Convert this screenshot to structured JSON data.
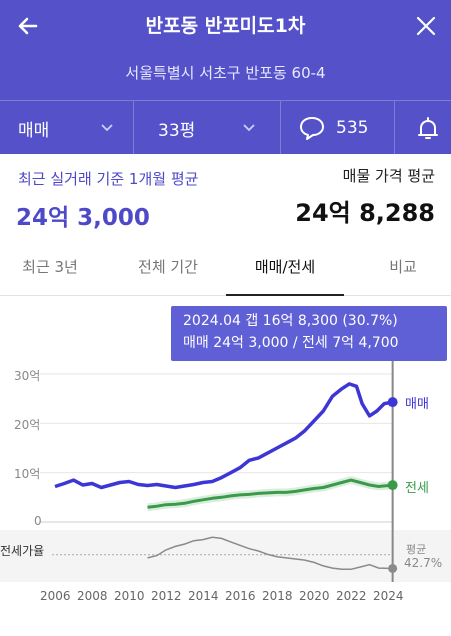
{
  "header": {
    "title": "반포동 반포미도1차",
    "address": "서울특별시 서초구 반포동 60-4",
    "trade_type": "매매",
    "size": "33평",
    "comment_count": "535"
  },
  "summary": {
    "recent_label": "최근 실거래 기준 1개월 평균",
    "recent_value": "24억 3,000",
    "listing_label": "매물 가격 평균",
    "listing_value": "24억 8,288"
  },
  "tabs": [
    {
      "label": "최근 3년"
    },
    {
      "label": "전체 기간"
    },
    {
      "label": "매매/전세"
    },
    {
      "label": "비교"
    }
  ],
  "tooltip": {
    "line1": "2024.04  갭 16억 8,300 (30.7%)",
    "line2": "매매 24억 3,000 / 전세 7억 4,700"
  },
  "colors": {
    "header_bg": "#5451c9",
    "sale": "#3d36d6",
    "jeonse": "#3a9a4a",
    "ratio": "#8a8a8a"
  },
  "chart_data": {
    "type": "line",
    "x_ticks": [
      "2006",
      "2008",
      "2010",
      "2012",
      "2014",
      "2016",
      "2018",
      "2020",
      "2022",
      "2024"
    ],
    "y_ticks": [
      "30억",
      "20억",
      "10억",
      "0"
    ],
    "ylim": [
      0,
      30
    ],
    "series": [
      {
        "name": "매매",
        "x": [
          2006.0,
          2006.5,
          2007.0,
          2007.5,
          2008.0,
          2008.5,
          2009.0,
          2009.5,
          2010.0,
          2010.5,
          2011.0,
          2011.5,
          2012.0,
          2012.5,
          2013.0,
          2013.5,
          2014.0,
          2014.5,
          2015.0,
          2015.5,
          2016.0,
          2016.5,
          2017.0,
          2017.5,
          2018.0,
          2018.5,
          2019.0,
          2019.5,
          2020.0,
          2020.5,
          2021.0,
          2021.5,
          2021.9,
          2022.3,
          2022.6,
          2023.0,
          2023.4,
          2023.8,
          2024.25
        ],
        "y": [
          7.2,
          7.8,
          8.5,
          7.5,
          7.8,
          7.0,
          7.5,
          8.0,
          8.2,
          7.6,
          7.4,
          7.6,
          7.3,
          7.0,
          7.3,
          7.6,
          8.0,
          8.2,
          9.0,
          10.0,
          11.0,
          12.5,
          13.0,
          14.0,
          15.0,
          16.0,
          17.0,
          18.5,
          20.5,
          22.5,
          25.5,
          27.0,
          28.0,
          27.5,
          24.0,
          21.5,
          22.5,
          24.0,
          24.3
        ]
      },
      {
        "name": "전세",
        "x": [
          2011.0,
          2011.5,
          2012.0,
          2012.5,
          2013.0,
          2013.5,
          2014.0,
          2014.5,
          2015.0,
          2015.5,
          2016.0,
          2016.5,
          2017.0,
          2017.5,
          2018.0,
          2018.5,
          2019.0,
          2019.5,
          2020.0,
          2020.5,
          2021.0,
          2021.5,
          2022.0,
          2022.5,
          2023.0,
          2023.5,
          2024.25
        ],
        "y": [
          3.0,
          3.2,
          3.5,
          3.6,
          3.8,
          4.2,
          4.5,
          4.8,
          5.0,
          5.3,
          5.5,
          5.6,
          5.8,
          5.9,
          6.0,
          6.0,
          6.2,
          6.5,
          6.8,
          7.0,
          7.5,
          8.0,
          8.5,
          8.0,
          7.5,
          7.2,
          7.47
        ]
      }
    ],
    "ratio": {
      "label": "전세가율",
      "avg_label": "평균",
      "avg_value": "42.7%",
      "avg": 42.7,
      "x": [
        2011.0,
        2011.5,
        2012.0,
        2012.5,
        2013.0,
        2013.5,
        2014.0,
        2014.5,
        2015.0,
        2015.5,
        2016.0,
        2016.5,
        2017.0,
        2017.5,
        2018.0,
        2018.5,
        2019.0,
        2019.5,
        2020.0,
        2020.5,
        2021.0,
        2021.5,
        2022.0,
        2022.5,
        2023.0,
        2023.5,
        2024.25
      ],
      "y": [
        40,
        42,
        47,
        50,
        52,
        55,
        56,
        58,
        57,
        54,
        51,
        48,
        46,
        43,
        41,
        40,
        39,
        38,
        36,
        33,
        31,
        30,
        30,
        32,
        34,
        31,
        30.7
      ]
    },
    "tooltip_x": 2024.25
  }
}
